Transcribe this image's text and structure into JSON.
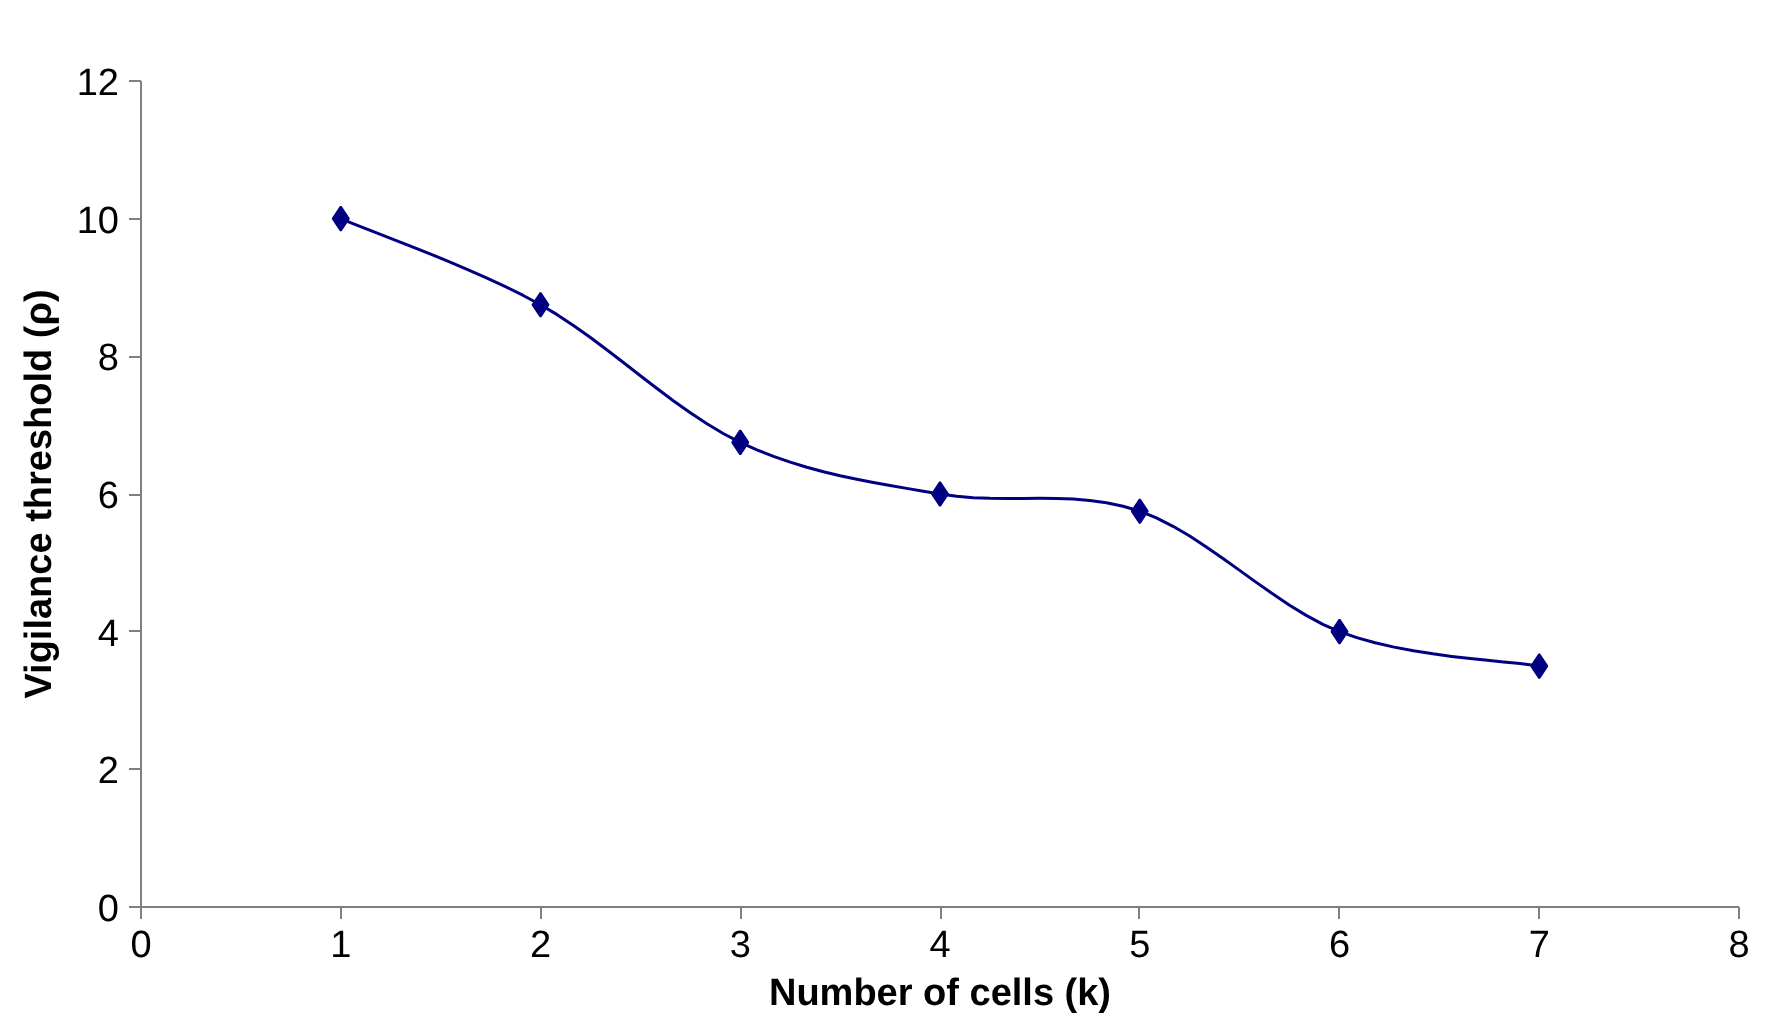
{
  "chart_data": {
    "type": "line",
    "xlabel": "Number of cells (k)",
    "ylabel": "Vigilance threshold (ρ)",
    "x": [
      1,
      2,
      3,
      4,
      5,
      6,
      7
    ],
    "series": [
      {
        "color": "#000080",
        "values": [
          10,
          8.75,
          6.75,
          6,
          5.75,
          4,
          3.5
        ]
      }
    ],
    "xlim": [
      0,
      8
    ],
    "xticks": [
      0,
      1,
      2,
      3,
      4,
      5,
      6,
      7,
      8
    ],
    "ylim": [
      0,
      12
    ],
    "yticks": [
      0,
      2,
      4,
      6,
      8,
      10,
      12
    ],
    "grid": false,
    "marker": "diamond",
    "line_style": "solid"
  }
}
